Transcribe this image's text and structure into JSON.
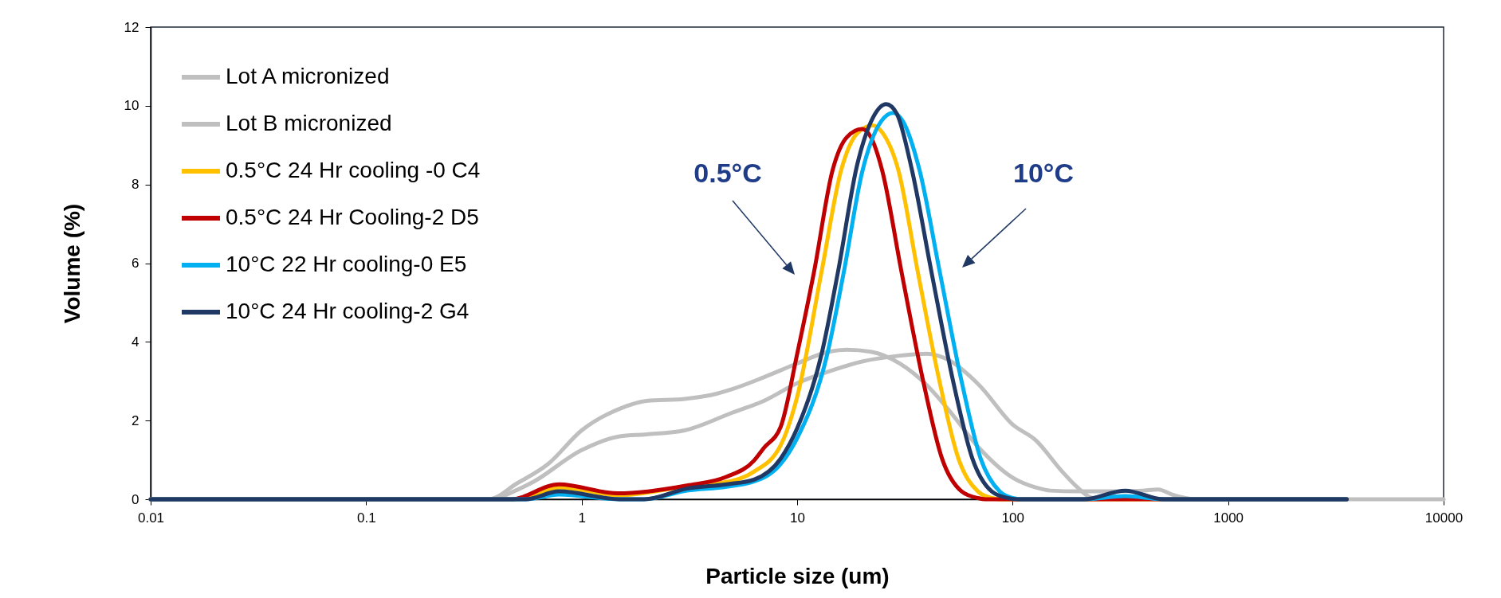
{
  "chart_data": {
    "type": "line",
    "xlabel": "Particle size (um)",
    "ylabel": "Volume (%)",
    "log": "x",
    "xlim": [
      0.01,
      10000
    ],
    "xticks": [
      0.01,
      0.1,
      1,
      10,
      100,
      1000,
      10000
    ],
    "ylim": [
      0,
      12
    ],
    "yticks": [
      0,
      2,
      4,
      6,
      8,
      10,
      12
    ],
    "grid": false,
    "legend": "top left",
    "marker": "none",
    "line_style": "solid",
    "annotations": [
      "0.5°C",
      "10°C"
    ],
    "series": [
      {
        "name": "Lot A micronized",
        "color": "#bfbfbf",
        "x": [
          0.01,
          0.37,
          0.5,
          0.7,
          1,
          1.5,
          2,
          3,
          4,
          5,
          7,
          10,
          14,
          17,
          22,
          30,
          40,
          50,
          70,
          100,
          128,
          150,
          200,
          300,
          400,
          474,
          550,
          650,
          700,
          10000
        ],
        "values": [
          0,
          0,
          0.4,
          0.9,
          1.75,
          2.3,
          2.5,
          2.55,
          2.65,
          2.8,
          3.1,
          3.45,
          3.75,
          3.8,
          3.75,
          3.45,
          2.9,
          2.3,
          1.3,
          0.55,
          0.3,
          0.22,
          0.2,
          0.2,
          0.22,
          0.25,
          0.12,
          0.02,
          0,
          0
        ]
      },
      {
        "name": "Lot B micronized",
        "color": "#bfbfbf",
        "x": [
          0.4,
          0.6,
          1,
          1.5,
          2,
          3,
          5,
          7,
          10,
          15,
          20,
          30,
          40,
          50,
          70,
          100,
          128,
          170,
          200,
          230,
          260
        ],
        "values": [
          0,
          0.45,
          1.25,
          1.6,
          1.65,
          1.75,
          2.2,
          2.5,
          2.95,
          3.3,
          3.5,
          3.65,
          3.7,
          3.55,
          2.9,
          1.9,
          1.5,
          0.7,
          0.3,
          0.05,
          0
        ]
      },
      {
        "name": "0.5°C 24 Hr cooling -0 C4",
        "color": "#ffc000",
        "x": [
          0.01,
          0.5,
          0.785,
          1.5,
          3.08,
          4.7,
          6.3,
          8.4,
          10,
          13,
          16,
          19,
          22.4,
          25,
          29.5,
          36.3,
          45.8,
          56,
          69,
          80,
          88,
          3550
        ],
        "values": [
          0,
          0,
          0.3,
          0.1,
          0.33,
          0.44,
          0.7,
          1.38,
          2.6,
          5.8,
          8.36,
          9.3,
          9.5,
          9.3,
          8.36,
          5.78,
          2.99,
          1.04,
          0.2,
          0.03,
          0,
          0
        ]
      },
      {
        "name": "0.5°C 24 Hr Cooling-2 D5",
        "color": "#c00000",
        "x": [
          0.01,
          0.47,
          0.785,
          1.47,
          3.08,
          4.7,
          6.3,
          7,
          8.4,
          10,
          12,
          14.6,
          17,
          20,
          22,
          24.8,
          30.5,
          38.5,
          47,
          58,
          69,
          75,
          3550
        ],
        "values": [
          0,
          0,
          0.38,
          0.15,
          0.35,
          0.57,
          0.98,
          1.3,
          1.85,
          3.69,
          5.8,
          8.36,
          9.2,
          9.41,
          9.2,
          8.36,
          5.78,
          2.99,
          1.04,
          0.2,
          0.03,
          0,
          0
        ]
      },
      {
        "name": "10°C 22 Hr cooling-0 E5",
        "color": "#00b0f0",
        "x": [
          0.01,
          0.55,
          0.785,
          1.5,
          1.95,
          3.08,
          4.7,
          6.3,
          8.4,
          10,
          13.8,
          16.5,
          20,
          24.5,
          27.9,
          31,
          37,
          45.9,
          58,
          71,
          87,
          100,
          110,
          214,
          333,
          502,
          3550
        ],
        "values": [
          0,
          0,
          0.12,
          0,
          0,
          0.22,
          0.32,
          0.45,
          0.9,
          1.55,
          3.69,
          5.8,
          8.3,
          9.6,
          9.82,
          9.6,
          8.36,
          5.78,
          2.99,
          1.04,
          0.2,
          0.03,
          0,
          0,
          0.08,
          0,
          0
        ]
      },
      {
        "name": "10°C 24 Hr cooling-2 G4",
        "color": "#1f3864",
        "x": [
          0.01,
          0.55,
          0.785,
          1.5,
          1.95,
          3.08,
          4.7,
          6.3,
          8.4,
          10,
          13,
          15.5,
          19,
          22.5,
          25.9,
          29,
          34,
          42,
          53,
          65,
          80,
          95,
          105,
          214,
          333,
          502,
          3550
        ],
        "values": [
          0,
          0,
          0.2,
          0,
          0,
          0.27,
          0.38,
          0.5,
          1.04,
          1.8,
          3.7,
          5.8,
          8.5,
          9.7,
          10.04,
          9.8,
          8.4,
          5.78,
          2.99,
          1.04,
          0.2,
          0.03,
          0,
          0,
          0.22,
          0,
          0
        ]
      }
    ]
  }
}
